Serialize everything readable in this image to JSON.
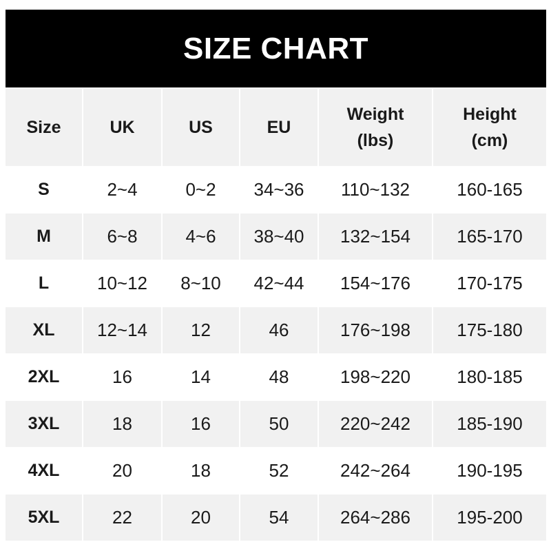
{
  "title": "SIZE CHART",
  "columns": [
    "Size",
    "UK",
    "US",
    "EU",
    "Weight\n(lbs)",
    "Height\n(cm)"
  ],
  "column_lines": [
    [
      "Size"
    ],
    [
      "UK"
    ],
    [
      "US"
    ],
    [
      "EU"
    ],
    [
      "Weight",
      "(lbs)"
    ],
    [
      "Height",
      "(cm)"
    ]
  ],
  "rows": [
    [
      "S",
      "2~4",
      "0~2",
      "34~36",
      "110~132",
      "160-165"
    ],
    [
      "M",
      "6~8",
      "4~6",
      "38~40",
      "132~154",
      "165-170"
    ],
    [
      "L",
      "10~12",
      "8~10",
      "42~44",
      "154~176",
      "170-175"
    ],
    [
      "XL",
      "12~14",
      "12",
      "46",
      "176~198",
      "175-180"
    ],
    [
      "2XL",
      "16",
      "14",
      "48",
      "198~220",
      "180-185"
    ],
    [
      "3XL",
      "18",
      "16",
      "50",
      "220~242",
      "185-190"
    ],
    [
      "4XL",
      "20",
      "18",
      "52",
      "242~264",
      "190-195"
    ],
    [
      "5XL",
      "22",
      "20",
      "54",
      "264~286",
      "195-200"
    ]
  ],
  "colors": {
    "header_bg": "#000000",
    "header_text": "#ffffff",
    "stripe": "#f1f1f1",
    "text": "#1a1a1a"
  }
}
